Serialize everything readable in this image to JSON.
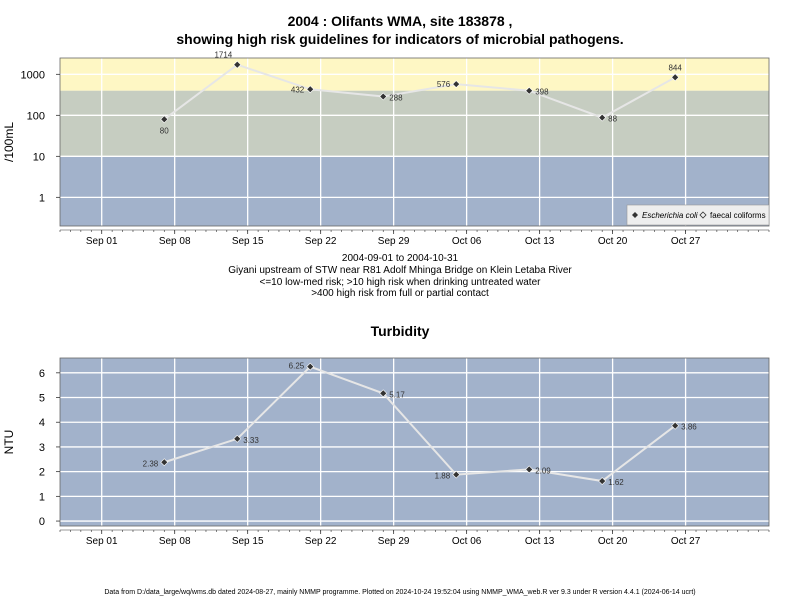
{
  "page": {
    "title_line1": "2004 : Olifants WMA, site 183878 ,",
    "title_line2": "showing high risk guidelines for indicators of microbial pathogens.",
    "caption_lines": [
      "2004-09-01 to 2004-10-31",
      "Giyani upstream of STW near R81 Adolf Mhinga Bridge on Klein Letaba River",
      "<=10 low-med risk; >10 high risk when drinking untreated water",
      ">400 high risk from full or partial contact"
    ],
    "footer": "Data from D:/data_large/wq/wms.db dated 2024-08-27, mainly NMMP programme. Plotted on 2024-10-24 19:52:04 using NMMP_WMA_web.R ver 9.3 under R version 4.4.1 (2024-06-14 ucrt)"
  },
  "chart_data": [
    {
      "type": "line",
      "title": "",
      "ylabel": "/100mL",
      "yscale": "log",
      "ylim": [
        0.2,
        2500
      ],
      "xlim": [
        "2004-08-28",
        "2004-11-04"
      ],
      "yticks": [
        1,
        10,
        100,
        1000
      ],
      "ytick_labels": [
        "1",
        "10",
        "100",
        "1000"
      ],
      "xticks": [
        "2004-09-01",
        "2004-09-08",
        "2004-09-15",
        "2004-09-22",
        "2004-09-29",
        "2004-10-06",
        "2004-10-13",
        "2004-10-20",
        "2004-10-27"
      ],
      "xtick_labels": [
        "Sep 01",
        "Sep 08",
        "Sep 15",
        "Sep 22",
        "Sep 29",
        "Oct 06",
        "Oct 13",
        "Oct 20",
        "Oct 27"
      ],
      "grid": true,
      "bands": [
        {
          "from": 0.2,
          "to": 10,
          "color": "#a2b2cb"
        },
        {
          "from": 10,
          "to": 400,
          "color": "#c6cdc1"
        },
        {
          "from": 400,
          "to": 2500,
          "color": "#fef7c4"
        }
      ],
      "legend": {
        "position": "bottom-right",
        "entries": [
          {
            "name": "Escherichia coli",
            "marker": "filled-diamond"
          },
          {
            "name": "faecal coliforms",
            "marker": "open-diamond"
          }
        ]
      },
      "series": [
        {
          "name": "Escherichia coli",
          "x": [
            "2004-09-07",
            "2004-09-14",
            "2004-09-21",
            "2004-09-28",
            "2004-10-05",
            "2004-10-12",
            "2004-10-19",
            "2004-10-26"
          ],
          "y": [
            80,
            1714,
            432,
            288,
            576,
            398,
            88,
            844
          ],
          "labels": [
            "80",
            "1714",
            "432",
            "288",
            "576",
            "398",
            "88",
            "844"
          ]
        }
      ]
    },
    {
      "type": "line",
      "title": "Turbidity",
      "ylabel": "NTU",
      "ylim": [
        -0.2,
        6.6
      ],
      "xlim": [
        "2004-08-28",
        "2004-11-04"
      ],
      "yticks": [
        0,
        1,
        2,
        3,
        4,
        5,
        6
      ],
      "ytick_labels": [
        "0",
        "1",
        "2",
        "3",
        "4",
        "5",
        "6"
      ],
      "xticks": [
        "2004-09-01",
        "2004-09-08",
        "2004-09-15",
        "2004-09-22",
        "2004-09-29",
        "2004-10-06",
        "2004-10-13",
        "2004-10-20",
        "2004-10-27"
      ],
      "xtick_labels": [
        "Sep 01",
        "Sep 08",
        "Sep 15",
        "Sep 22",
        "Sep 29",
        "Oct 06",
        "Oct 13",
        "Oct 20",
        "Oct 27"
      ],
      "grid": true,
      "background": "#a2b2cb",
      "series": [
        {
          "x": [
            "2004-09-07",
            "2004-09-14",
            "2004-09-21",
            "2004-09-28",
            "2004-10-05",
            "2004-10-12",
            "2004-10-19",
            "2004-10-26"
          ],
          "y": [
            2.38,
            3.33,
            6.25,
            5.17,
            1.88,
            2.09,
            1.62,
            3.86
          ],
          "labels": [
            "2.38",
            "3.33",
            "6.25",
            "5.17",
            "1.88",
            "2.09",
            "1.62",
            "3.86"
          ]
        }
      ]
    }
  ]
}
